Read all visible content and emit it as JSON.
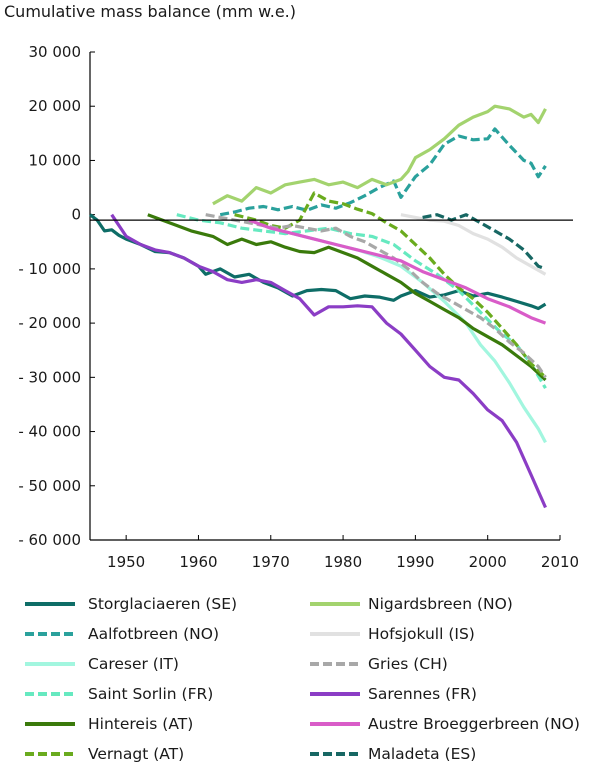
{
  "chart_data": {
    "type": "line",
    "title": "",
    "ylabel": "Cumulative mass balance (mm w.e.)",
    "xlabel": "",
    "xlim": [
      1945,
      2010
    ],
    "ylim": [
      -60000,
      30000
    ],
    "xticks": [
      "1950",
      "1960",
      "1970",
      "1980",
      "1990",
      "2000",
      "2010"
    ],
    "yticks": [
      "30 000",
      "20 000",
      "10 000",
      "0",
      "- 10 000",
      "- 20 000",
      "- 30 000",
      "- 40 000",
      "- 50 000",
      "- 60 000"
    ],
    "grid": false,
    "legend_position": "bottom",
    "series": [
      {
        "name": "Storglaciaeren (SE)",
        "color": "#0e6d67",
        "dash": "solid",
        "points": [
          [
            1945,
            0
          ],
          [
            1946,
            -1000
          ],
          [
            1947,
            -3000
          ],
          [
            1948,
            -2800
          ],
          [
            1949,
            -3800
          ],
          [
            1950,
            -4500
          ],
          [
            1952,
            -5500
          ],
          [
            1954,
            -6800
          ],
          [
            1956,
            -7000
          ],
          [
            1958,
            -8000
          ],
          [
            1960,
            -9500
          ],
          [
            1961,
            -11000
          ],
          [
            1963,
            -10000
          ],
          [
            1965,
            -11500
          ],
          [
            1967,
            -11000
          ],
          [
            1969,
            -12500
          ],
          [
            1971,
            -13500
          ],
          [
            1973,
            -15000
          ],
          [
            1975,
            -14000
          ],
          [
            1977,
            -13800
          ],
          [
            1979,
            -14000
          ],
          [
            1981,
            -15500
          ],
          [
            1983,
            -15000
          ],
          [
            1985,
            -15200
          ],
          [
            1987,
            -15800
          ],
          [
            1988,
            -15000
          ],
          [
            1990,
            -14000
          ],
          [
            1992,
            -15200
          ],
          [
            1994,
            -14800
          ],
          [
            1996,
            -14000
          ],
          [
            1998,
            -15000
          ],
          [
            2000,
            -14500
          ],
          [
            2002,
            -15200
          ],
          [
            2004,
            -16000
          ],
          [
            2006,
            -16800
          ],
          [
            2007,
            -17300
          ],
          [
            2008,
            -16500
          ]
        ]
      },
      {
        "name": "Aalfotbreen (NO)",
        "color": "#2aa19c",
        "dash": "dashed",
        "points": [
          [
            1963,
            0
          ],
          [
            1965,
            500
          ],
          [
            1967,
            1200
          ],
          [
            1969,
            1500
          ],
          [
            1971,
            900
          ],
          [
            1973,
            1500
          ],
          [
            1975,
            800
          ],
          [
            1977,
            1800
          ],
          [
            1979,
            1200
          ],
          [
            1981,
            2200
          ],
          [
            1983,
            3500
          ],
          [
            1985,
            5000
          ],
          [
            1987,
            6200
          ],
          [
            1988,
            3200
          ],
          [
            1990,
            7000
          ],
          [
            1992,
            9200
          ],
          [
            1994,
            13000
          ],
          [
            1996,
            14500
          ],
          [
            1998,
            13800
          ],
          [
            2000,
            14000
          ],
          [
            2001,
            15800
          ],
          [
            2003,
            12800
          ],
          [
            2005,
            10000
          ],
          [
            2006,
            9500
          ],
          [
            2007,
            7000
          ],
          [
            2008,
            9000
          ]
        ]
      },
      {
        "name": "Careser (IT)",
        "color": "#a2f6df",
        "dash": "solid",
        "points": [
          [
            1967,
            -1000
          ],
          [
            1970,
            -2500
          ],
          [
            1973,
            -3500
          ],
          [
            1976,
            -4500
          ],
          [
            1979,
            -5500
          ],
          [
            1982,
            -6500
          ],
          [
            1985,
            -7800
          ],
          [
            1988,
            -9500
          ],
          [
            1991,
            -12500
          ],
          [
            1994,
            -16000
          ],
          [
            1997,
            -20000
          ],
          [
            1999,
            -24000
          ],
          [
            2001,
            -27000
          ],
          [
            2003,
            -31000
          ],
          [
            2005,
            -35500
          ],
          [
            2007,
            -39500
          ],
          [
            2008,
            -42000
          ]
        ]
      },
      {
        "name": "Saint Sorlin (FR)",
        "color": "#66e9c0",
        "dash": "dashed",
        "points": [
          [
            1957,
            0
          ],
          [
            1960,
            -1000
          ],
          [
            1963,
            -1500
          ],
          [
            1966,
            -2500
          ],
          [
            1969,
            -3000
          ],
          [
            1972,
            -3500
          ],
          [
            1975,
            -3000
          ],
          [
            1978,
            -2500
          ],
          [
            1981,
            -3500
          ],
          [
            1984,
            -4000
          ],
          [
            1987,
            -5500
          ],
          [
            1990,
            -8500
          ],
          [
            1993,
            -11000
          ],
          [
            1996,
            -14000
          ],
          [
            1999,
            -18000
          ],
          [
            2002,
            -22000
          ],
          [
            2004,
            -24000
          ],
          [
            2006,
            -27500
          ],
          [
            2008,
            -32000
          ]
        ]
      },
      {
        "name": "Hintereis (AT)",
        "color": "#3a7a0b",
        "dash": "solid",
        "points": [
          [
            1953,
            0
          ],
          [
            1955,
            -1000
          ],
          [
            1957,
            -2000
          ],
          [
            1959,
            -3000
          ],
          [
            1962,
            -4000
          ],
          [
            1964,
            -5500
          ],
          [
            1966,
            -4500
          ],
          [
            1968,
            -5500
          ],
          [
            1970,
            -5000
          ],
          [
            1972,
            -6000
          ],
          [
            1974,
            -6800
          ],
          [
            1976,
            -7000
          ],
          [
            1978,
            -6000
          ],
          [
            1980,
            -7000
          ],
          [
            1982,
            -8000
          ],
          [
            1984,
            -9500
          ],
          [
            1986,
            -11000
          ],
          [
            1988,
            -12500
          ],
          [
            1990,
            -14500
          ],
          [
            1992,
            -16000
          ],
          [
            1994,
            -17500
          ],
          [
            1996,
            -19000
          ],
          [
            1998,
            -21000
          ],
          [
            2000,
            -22500
          ],
          [
            2002,
            -24000
          ],
          [
            2004,
            -26000
          ],
          [
            2006,
            -28000
          ],
          [
            2008,
            -30500
          ]
        ]
      },
      {
        "name": "Vernagt (AT)",
        "color": "#6aab1e",
        "dash": "dashed",
        "points": [
          [
            1965,
            0
          ],
          [
            1968,
            -1000
          ],
          [
            1970,
            -2000
          ],
          [
            1972,
            -2500
          ],
          [
            1974,
            -1000
          ],
          [
            1976,
            4000
          ],
          [
            1978,
            2500
          ],
          [
            1980,
            2000
          ],
          [
            1982,
            1000
          ],
          [
            1984,
            200
          ],
          [
            1986,
            -1500
          ],
          [
            1988,
            -3000
          ],
          [
            1990,
            -5500
          ],
          [
            1992,
            -8000
          ],
          [
            1994,
            -11000
          ],
          [
            1996,
            -13500
          ],
          [
            1998,
            -15500
          ],
          [
            2000,
            -18000
          ],
          [
            2002,
            -21000
          ],
          [
            2004,
            -24000
          ],
          [
            2006,
            -27500
          ],
          [
            2008,
            -30000
          ]
        ]
      },
      {
        "name": "Nigardsbreen (NO)",
        "color": "#a3d36e",
        "dash": "solid",
        "points": [
          [
            1962,
            2000
          ],
          [
            1964,
            3500
          ],
          [
            1966,
            2500
          ],
          [
            1968,
            5000
          ],
          [
            1970,
            4000
          ],
          [
            1972,
            5500
          ],
          [
            1974,
            6000
          ],
          [
            1976,
            6500
          ],
          [
            1978,
            5500
          ],
          [
            1980,
            6000
          ],
          [
            1982,
            5000
          ],
          [
            1984,
            6500
          ],
          [
            1986,
            5500
          ],
          [
            1988,
            6500
          ],
          [
            1989,
            8000
          ],
          [
            1990,
            10500
          ],
          [
            1992,
            12000
          ],
          [
            1994,
            14000
          ],
          [
            1996,
            16500
          ],
          [
            1998,
            18000
          ],
          [
            2000,
            19000
          ],
          [
            2001,
            20000
          ],
          [
            2003,
            19500
          ],
          [
            2005,
            18000
          ],
          [
            2006,
            18500
          ],
          [
            2007,
            17000
          ],
          [
            2008,
            19500
          ]
        ]
      },
      {
        "name": "Hofsjokull (IS)",
        "color": "#e1e1e1",
        "dash": "solid",
        "points": [
          [
            1988,
            0
          ],
          [
            1990,
            -500
          ],
          [
            1992,
            -1000
          ],
          [
            1994,
            -1200
          ],
          [
            1996,
            -2000
          ],
          [
            1998,
            -3500
          ],
          [
            2000,
            -4500
          ],
          [
            2002,
            -6000
          ],
          [
            2004,
            -8000
          ],
          [
            2006,
            -9500
          ],
          [
            2008,
            -11000
          ]
        ]
      },
      {
        "name": "Gries (CH)",
        "color": "#a8a8a8",
        "dash": "dashed",
        "points": [
          [
            1961,
            0
          ],
          [
            1963,
            -500
          ],
          [
            1965,
            -1000
          ],
          [
            1967,
            -1500
          ],
          [
            1969,
            -2000
          ],
          [
            1971,
            -2500
          ],
          [
            1973,
            -2000
          ],
          [
            1975,
            -2500
          ],
          [
            1977,
            -3000
          ],
          [
            1979,
            -2500
          ],
          [
            1981,
            -4000
          ],
          [
            1983,
            -5000
          ],
          [
            1985,
            -6500
          ],
          [
            1987,
            -8000
          ],
          [
            1989,
            -10000
          ],
          [
            1991,
            -12500
          ],
          [
            1993,
            -14500
          ],
          [
            1995,
            -16000
          ],
          [
            1997,
            -17500
          ],
          [
            1999,
            -19000
          ],
          [
            2001,
            -21000
          ],
          [
            2003,
            -23500
          ],
          [
            2005,
            -25500
          ],
          [
            2007,
            -28000
          ],
          [
            2008,
            -30000
          ]
        ]
      },
      {
        "name": "Sarennes (FR)",
        "color": "#8b3dc5",
        "dash": "solid",
        "points": [
          [
            1948,
            0
          ],
          [
            1950,
            -4000
          ],
          [
            1952,
            -5500
          ],
          [
            1954,
            -6500
          ],
          [
            1956,
            -7000
          ],
          [
            1958,
            -8000
          ],
          [
            1960,
            -9500
          ],
          [
            1962,
            -10500
          ],
          [
            1964,
            -12000
          ],
          [
            1966,
            -12500
          ],
          [
            1968,
            -12000
          ],
          [
            1970,
            -12500
          ],
          [
            1972,
            -14000
          ],
          [
            1974,
            -15500
          ],
          [
            1976,
            -18500
          ],
          [
            1978,
            -17000
          ],
          [
            1980,
            -17000
          ],
          [
            1982,
            -16800
          ],
          [
            1984,
            -17000
          ],
          [
            1986,
            -20000
          ],
          [
            1988,
            -22000
          ],
          [
            1990,
            -25000
          ],
          [
            1992,
            -28000
          ],
          [
            1994,
            -30000
          ],
          [
            1996,
            -30500
          ],
          [
            1998,
            -33000
          ],
          [
            2000,
            -36000
          ],
          [
            2002,
            -38000
          ],
          [
            2004,
            -42000
          ],
          [
            2006,
            -48000
          ],
          [
            2008,
            -54000
          ]
        ]
      },
      {
        "name": "Austre Broeggerbreen (NO)",
        "color": "#d95cc8",
        "dash": "solid",
        "points": [
          [
            1967,
            -1000
          ],
          [
            1970,
            -2500
          ],
          [
            1973,
            -3500
          ],
          [
            1976,
            -4500
          ],
          [
            1979,
            -5500
          ],
          [
            1982,
            -6500
          ],
          [
            1985,
            -7500
          ],
          [
            1988,
            -8500
          ],
          [
            1991,
            -10500
          ],
          [
            1994,
            -12000
          ],
          [
            1997,
            -13500
          ],
          [
            2000,
            -15500
          ],
          [
            2003,
            -17000
          ],
          [
            2006,
            -19000
          ],
          [
            2008,
            -20000
          ]
        ]
      },
      {
        "name": "Maladeta (ES)",
        "color": "#176763",
        "dash": "dashed",
        "points": [
          [
            1991,
            -500
          ],
          [
            1993,
            0
          ],
          [
            1995,
            -1000
          ],
          [
            1997,
            0
          ],
          [
            1999,
            -1500
          ],
          [
            2001,
            -3000
          ],
          [
            2003,
            -4500
          ],
          [
            2005,
            -6500
          ],
          [
            2006,
            -8000
          ],
          [
            2007,
            -9500
          ],
          [
            2008,
            -10000
          ]
        ]
      }
    ]
  }
}
